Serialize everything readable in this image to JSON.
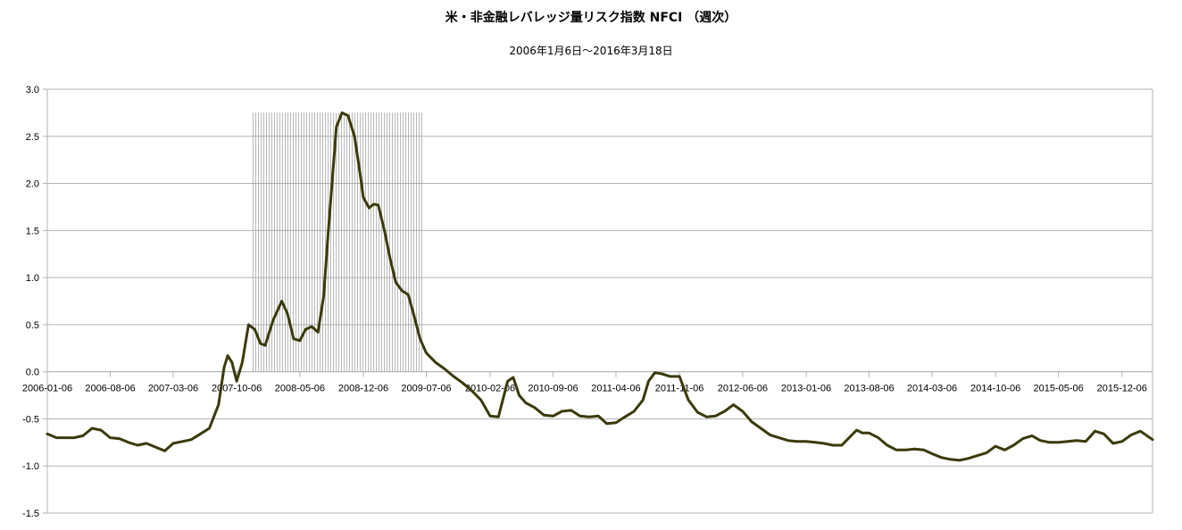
{
  "chart_data": {
    "type": "line",
    "title": "米・非金融レバレッジ量リスク指数  NFCI （週次）",
    "subtitle": "2006年1月6日～2016年3月18日",
    "ylim": [
      -1.5,
      3.0
    ],
    "yticks": [
      "3.0",
      "2.5",
      "2.0",
      "1.5",
      "1.0",
      "0.5",
      "0.0",
      "-0.5",
      "-1.0",
      "-1.5"
    ],
    "ytick_values": [
      3.0,
      2.5,
      2.0,
      1.5,
      1.0,
      0.5,
      0.0,
      -0.5,
      -1.0,
      -1.5
    ],
    "xlim": [
      "2006-01-06",
      "2016-03-18"
    ],
    "xticks": [
      "2006-01-06",
      "2006-08-06",
      "2007-03-06",
      "2007-10-06",
      "2008-05-06",
      "2008-12-06",
      "2009-07-06",
      "2010-02-06",
      "2010-09-06",
      "2011-04-06",
      "2011-11-06",
      "2012-06-06",
      "2013-01-06",
      "2013-08-06",
      "2014-03-06",
      "2014-10-06",
      "2015-05-06",
      "2015-12-06"
    ],
    "grid": true,
    "shaded_period": {
      "start": "2007-12-01",
      "end": "2009-06-30",
      "top": 2.75
    },
    "series": [
      {
        "color": "#3a3a0a",
        "points": [
          [
            "2006-01-06",
            -0.66
          ],
          [
            "2006-02-06",
            -0.7
          ],
          [
            "2006-03-06",
            -0.7
          ],
          [
            "2006-04-06",
            -0.7
          ],
          [
            "2006-05-06",
            -0.68
          ],
          [
            "2006-06-06",
            -0.6
          ],
          [
            "2006-07-06",
            -0.62
          ],
          [
            "2006-08-06",
            -0.7
          ],
          [
            "2006-09-06",
            -0.71
          ],
          [
            "2006-10-06",
            -0.75
          ],
          [
            "2006-11-06",
            -0.78
          ],
          [
            "2006-12-06",
            -0.76
          ],
          [
            "2007-01-06",
            -0.8
          ],
          [
            "2007-02-06",
            -0.84
          ],
          [
            "2007-03-06",
            -0.76
          ],
          [
            "2007-04-06",
            -0.74
          ],
          [
            "2007-05-06",
            -0.72
          ],
          [
            "2007-06-06",
            -0.66
          ],
          [
            "2007-07-06",
            -0.6
          ],
          [
            "2007-08-06",
            -0.35
          ],
          [
            "2007-08-25",
            0.05
          ],
          [
            "2007-09-06",
            0.17
          ],
          [
            "2007-09-20",
            0.1
          ],
          [
            "2007-10-06",
            -0.1
          ],
          [
            "2007-10-25",
            0.1
          ],
          [
            "2007-11-15",
            0.5
          ],
          [
            "2007-12-06",
            0.45
          ],
          [
            "2007-12-25",
            0.3
          ],
          [
            "2008-01-10",
            0.28
          ],
          [
            "2008-02-06",
            0.55
          ],
          [
            "2008-03-06",
            0.75
          ],
          [
            "2008-03-25",
            0.62
          ],
          [
            "2008-04-15",
            0.35
          ],
          [
            "2008-05-06",
            0.33
          ],
          [
            "2008-05-25",
            0.45
          ],
          [
            "2008-06-15",
            0.48
          ],
          [
            "2008-07-06",
            0.42
          ],
          [
            "2008-07-25",
            0.8
          ],
          [
            "2008-08-10",
            1.5
          ],
          [
            "2008-09-06",
            2.6
          ],
          [
            "2008-09-25",
            2.75
          ],
          [
            "2008-10-15",
            2.72
          ],
          [
            "2008-11-06",
            2.5
          ],
          [
            "2008-11-25",
            2.1
          ],
          [
            "2008-12-06",
            1.85
          ],
          [
            "2008-12-25",
            1.74
          ],
          [
            "2009-01-10",
            1.78
          ],
          [
            "2009-01-25",
            1.77
          ],
          [
            "2009-02-15",
            1.5
          ],
          [
            "2009-03-06",
            1.2
          ],
          [
            "2009-03-25",
            0.95
          ],
          [
            "2009-04-15",
            0.86
          ],
          [
            "2009-05-06",
            0.82
          ],
          [
            "2009-05-25",
            0.6
          ],
          [
            "2009-06-15",
            0.35
          ],
          [
            "2009-07-06",
            0.2
          ],
          [
            "2009-08-06",
            0.1
          ],
          [
            "2009-09-06",
            0.03
          ],
          [
            "2009-10-06",
            -0.05
          ],
          [
            "2009-11-06",
            -0.12
          ],
          [
            "2009-12-06",
            -0.2
          ],
          [
            "2010-01-06",
            -0.3
          ],
          [
            "2010-02-06",
            -0.47
          ],
          [
            "2010-03-06",
            -0.48
          ],
          [
            "2010-04-06",
            -0.1
          ],
          [
            "2010-04-25",
            -0.06
          ],
          [
            "2010-05-15",
            -0.25
          ],
          [
            "2010-06-06",
            -0.33
          ],
          [
            "2010-07-06",
            -0.38
          ],
          [
            "2010-08-06",
            -0.46
          ],
          [
            "2010-09-06",
            -0.47
          ],
          [
            "2010-10-06",
            -0.42
          ],
          [
            "2010-11-06",
            -0.41
          ],
          [
            "2010-12-06",
            -0.47
          ],
          [
            "2011-01-06",
            -0.48
          ],
          [
            "2011-02-06",
            -0.47
          ],
          [
            "2011-03-06",
            -0.55
          ],
          [
            "2011-04-06",
            -0.54
          ],
          [
            "2011-05-06",
            -0.48
          ],
          [
            "2011-06-06",
            -0.42
          ],
          [
            "2011-07-06",
            -0.3
          ],
          [
            "2011-07-25",
            -0.1
          ],
          [
            "2011-08-15",
            -0.01
          ],
          [
            "2011-09-06",
            -0.02
          ],
          [
            "2011-10-06",
            -0.05
          ],
          [
            "2011-11-06",
            -0.05
          ],
          [
            "2011-12-06",
            -0.3
          ],
          [
            "2012-01-06",
            -0.43
          ],
          [
            "2012-02-06",
            -0.48
          ],
          [
            "2012-03-06",
            -0.47
          ],
          [
            "2012-04-06",
            -0.42
          ],
          [
            "2012-05-06",
            -0.35
          ],
          [
            "2012-06-06",
            -0.42
          ],
          [
            "2012-07-06",
            -0.53
          ],
          [
            "2012-08-06",
            -0.6
          ],
          [
            "2012-09-06",
            -0.67
          ],
          [
            "2012-10-06",
            -0.7
          ],
          [
            "2012-11-06",
            -0.73
          ],
          [
            "2012-12-06",
            -0.74
          ],
          [
            "2013-01-06",
            -0.74
          ],
          [
            "2013-02-06",
            -0.75
          ],
          [
            "2013-03-06",
            -0.76
          ],
          [
            "2013-04-06",
            -0.78
          ],
          [
            "2013-05-06",
            -0.78
          ],
          [
            "2013-06-06",
            -0.68
          ],
          [
            "2013-06-25",
            -0.62
          ],
          [
            "2013-07-15",
            -0.65
          ],
          [
            "2013-08-06",
            -0.65
          ],
          [
            "2013-09-06",
            -0.7
          ],
          [
            "2013-10-06",
            -0.78
          ],
          [
            "2013-11-06",
            -0.83
          ],
          [
            "2013-12-06",
            -0.83
          ],
          [
            "2014-01-06",
            -0.82
          ],
          [
            "2014-02-06",
            -0.83
          ],
          [
            "2014-03-06",
            -0.87
          ],
          [
            "2014-04-06",
            -0.91
          ],
          [
            "2014-05-06",
            -0.93
          ],
          [
            "2014-06-06",
            -0.94
          ],
          [
            "2014-07-06",
            -0.92
          ],
          [
            "2014-08-06",
            -0.89
          ],
          [
            "2014-09-06",
            -0.86
          ],
          [
            "2014-10-06",
            -0.79
          ],
          [
            "2014-11-06",
            -0.83
          ],
          [
            "2014-12-06",
            -0.78
          ],
          [
            "2015-01-06",
            -0.71
          ],
          [
            "2015-02-06",
            -0.68
          ],
          [
            "2015-03-06",
            -0.73
          ],
          [
            "2015-04-06",
            -0.75
          ],
          [
            "2015-05-06",
            -0.75
          ],
          [
            "2015-06-06",
            -0.74
          ],
          [
            "2015-07-06",
            -0.73
          ],
          [
            "2015-08-06",
            -0.74
          ],
          [
            "2015-09-06",
            -0.63
          ],
          [
            "2015-10-06",
            -0.66
          ],
          [
            "2015-11-06",
            -0.76
          ],
          [
            "2015-12-06",
            -0.74
          ],
          [
            "2016-01-06",
            -0.67
          ],
          [
            "2016-02-06",
            -0.63
          ],
          [
            "2016-03-18",
            -0.72
          ]
        ]
      }
    ]
  }
}
